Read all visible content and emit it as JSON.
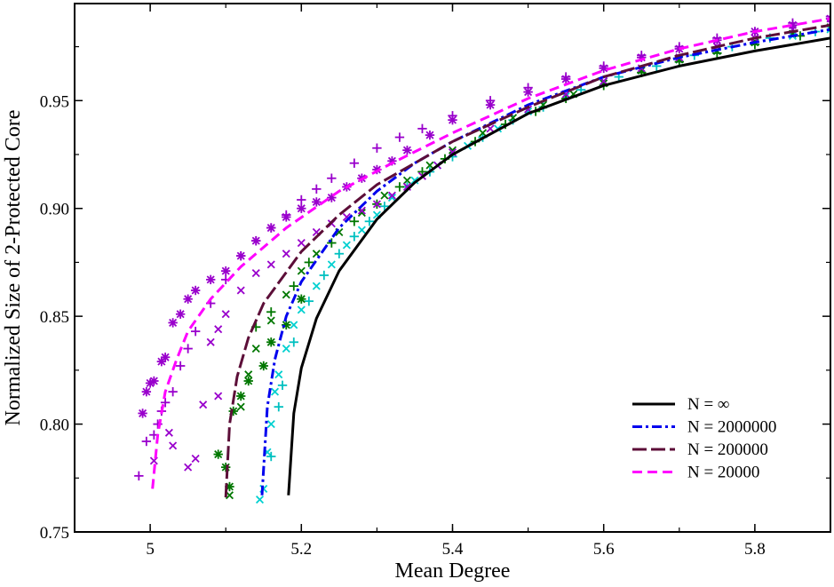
{
  "chart_data": {
    "type": "line",
    "xlabel": "Mean Degree",
    "ylabel": "Normalized Size of 2-Protected Core",
    "xlim": [
      4.9,
      5.9
    ],
    "ylim": [
      0.75,
      0.995
    ],
    "x_ticks": [
      {
        "value": 5.0,
        "label": "5"
      },
      {
        "value": 5.2,
        "label": "5.2"
      },
      {
        "value": 5.4,
        "label": "5.4"
      },
      {
        "value": 5.6,
        "label": "5.6"
      },
      {
        "value": 5.8,
        "label": "5.8"
      }
    ],
    "y_ticks": [
      {
        "value": 0.75,
        "label": "0.75"
      },
      {
        "value": 0.8,
        "label": "0.80"
      },
      {
        "value": 0.85,
        "label": "0.85"
      },
      {
        "value": 0.9,
        "label": "0.90"
      },
      {
        "value": 0.95,
        "label": "0.95"
      }
    ],
    "legend_position": "bottom-right",
    "series": [
      {
        "name": "N = ∞",
        "color": "#000000",
        "dash": "solid",
        "points": [
          [
            5.183,
            0.767
          ],
          [
            5.19,
            0.805
          ],
          [
            5.2,
            0.826
          ],
          [
            5.22,
            0.849
          ],
          [
            5.25,
            0.871
          ],
          [
            5.3,
            0.895
          ],
          [
            5.35,
            0.912
          ],
          [
            5.4,
            0.925
          ],
          [
            5.5,
            0.944
          ],
          [
            5.6,
            0.957
          ],
          [
            5.7,
            0.966
          ],
          [
            5.8,
            0.973
          ],
          [
            5.9,
            0.979
          ]
        ]
      },
      {
        "name": "N = 2000000",
        "color": "#0000ee",
        "dash": "dashdot",
        "points": [
          [
            5.148,
            0.767
          ],
          [
            5.155,
            0.808
          ],
          [
            5.165,
            0.83
          ],
          [
            5.18,
            0.85
          ],
          [
            5.2,
            0.866
          ],
          [
            5.25,
            0.891
          ],
          [
            5.3,
            0.908
          ],
          [
            5.35,
            0.921
          ],
          [
            5.4,
            0.931
          ],
          [
            5.5,
            0.948
          ],
          [
            5.6,
            0.961
          ],
          [
            5.7,
            0.97
          ],
          [
            5.8,
            0.977
          ],
          [
            5.9,
            0.983
          ]
        ]
      },
      {
        "name": "N = 200000",
        "color": "#5c0e38",
        "dash": "longdash",
        "points": [
          [
            5.1,
            0.766
          ],
          [
            5.105,
            0.8
          ],
          [
            5.115,
            0.822
          ],
          [
            5.13,
            0.84
          ],
          [
            5.15,
            0.856
          ],
          [
            5.2,
            0.88
          ],
          [
            5.25,
            0.897
          ],
          [
            5.3,
            0.911
          ],
          [
            5.4,
            0.931
          ],
          [
            5.5,
            0.947
          ],
          [
            5.6,
            0.961
          ],
          [
            5.7,
            0.971
          ],
          [
            5.8,
            0.979
          ],
          [
            5.9,
            0.985
          ]
        ]
      },
      {
        "name": "N = 20000",
        "color": "#ff00ff",
        "dash": "dash",
        "points": [
          [
            5.003,
            0.77
          ],
          [
            5.01,
            0.795
          ],
          [
            5.02,
            0.815
          ],
          [
            5.035,
            0.83
          ],
          [
            5.05,
            0.843
          ],
          [
            5.08,
            0.858
          ],
          [
            5.12,
            0.873
          ],
          [
            5.18,
            0.891
          ],
          [
            5.25,
            0.908
          ],
          [
            5.32,
            0.921
          ],
          [
            5.4,
            0.935
          ],
          [
            5.5,
            0.951
          ],
          [
            5.6,
            0.964
          ],
          [
            5.7,
            0.974
          ],
          [
            5.8,
            0.982
          ],
          [
            5.9,
            0.988
          ]
        ]
      }
    ],
    "marker_series": [
      {
        "marker": "x",
        "color": "#00d0d0",
        "points": [
          [
            5.145,
            0.765
          ],
          [
            5.15,
            0.77
          ],
          [
            5.155,
            0.787
          ],
          [
            5.16,
            0.8
          ],
          [
            5.165,
            0.815
          ],
          [
            5.17,
            0.823
          ],
          [
            5.18,
            0.835
          ],
          [
            5.19,
            0.846
          ],
          [
            5.2,
            0.853
          ],
          [
            5.22,
            0.864
          ],
          [
            5.24,
            0.874
          ],
          [
            5.26,
            0.883
          ],
          [
            5.28,
            0.89
          ],
          [
            5.3,
            0.897
          ],
          [
            5.32,
            0.905
          ],
          [
            5.35,
            0.913
          ],
          [
            5.38,
            0.92
          ],
          [
            5.42,
            0.929
          ],
          [
            5.46,
            0.937
          ],
          [
            5.5,
            0.945
          ],
          [
            5.55,
            0.952
          ],
          [
            5.6,
            0.959
          ],
          [
            5.65,
            0.964
          ],
          [
            5.7,
            0.969
          ],
          [
            5.75,
            0.973
          ],
          [
            5.8,
            0.977
          ],
          [
            5.85,
            0.98
          ],
          [
            5.9,
            0.983
          ]
        ]
      },
      {
        "marker": "+",
        "color": "#00c0c0",
        "points": [
          [
            5.16,
            0.785
          ],
          [
            5.17,
            0.808
          ],
          [
            5.175,
            0.818
          ],
          [
            5.19,
            0.838
          ],
          [
            5.21,
            0.857
          ],
          [
            5.23,
            0.869
          ],
          [
            5.25,
            0.879
          ],
          [
            5.27,
            0.887
          ],
          [
            5.29,
            0.894
          ],
          [
            5.31,
            0.901
          ],
          [
            5.34,
            0.91
          ],
          [
            5.37,
            0.917
          ],
          [
            5.4,
            0.924
          ],
          [
            5.44,
            0.933
          ],
          [
            5.48,
            0.941
          ],
          [
            5.52,
            0.947
          ],
          [
            5.57,
            0.955
          ],
          [
            5.62,
            0.961
          ],
          [
            5.67,
            0.966
          ],
          [
            5.72,
            0.971
          ],
          [
            5.77,
            0.975
          ],
          [
            5.82,
            0.979
          ],
          [
            5.88,
            0.982
          ]
        ]
      },
      {
        "marker": "*",
        "color": "#007700",
        "points": [
          [
            5.09,
            0.786
          ],
          [
            5.1,
            0.78
          ],
          [
            5.105,
            0.771
          ],
          [
            5.11,
            0.806
          ],
          [
            5.12,
            0.813
          ],
          [
            5.13,
            0.82
          ],
          [
            5.15,
            0.827
          ],
          [
            5.16,
            0.838
          ],
          [
            5.18,
            0.846
          ],
          [
            5.2,
            0.858
          ]
        ]
      },
      {
        "marker": "x",
        "color": "#007700",
        "points": [
          [
            5.105,
            0.767
          ],
          [
            5.12,
            0.808
          ],
          [
            5.13,
            0.823
          ],
          [
            5.14,
            0.835
          ],
          [
            5.16,
            0.848
          ],
          [
            5.18,
            0.86
          ],
          [
            5.2,
            0.871
          ],
          [
            5.22,
            0.879
          ],
          [
            5.25,
            0.889
          ],
          [
            5.28,
            0.898
          ],
          [
            5.31,
            0.906
          ],
          [
            5.34,
            0.913
          ],
          [
            5.37,
            0.92
          ],
          [
            5.4,
            0.927
          ],
          [
            5.44,
            0.935
          ],
          [
            5.48,
            0.942
          ],
          [
            5.52,
            0.948
          ],
          [
            5.56,
            0.953
          ],
          [
            5.6,
            0.958
          ],
          [
            5.65,
            0.964
          ],
          [
            5.7,
            0.969
          ],
          [
            5.75,
            0.973
          ],
          [
            5.8,
            0.977
          ],
          [
            5.85,
            0.981
          ],
          [
            5.9,
            0.984
          ]
        ]
      },
      {
        "marker": "+",
        "color": "#007700",
        "points": [
          [
            5.14,
            0.845
          ],
          [
            5.16,
            0.852
          ],
          [
            5.19,
            0.864
          ],
          [
            5.21,
            0.875
          ],
          [
            5.24,
            0.884
          ],
          [
            5.27,
            0.894
          ],
          [
            5.3,
            0.902
          ],
          [
            5.33,
            0.91
          ],
          [
            5.36,
            0.917
          ],
          [
            5.39,
            0.923
          ],
          [
            5.43,
            0.931
          ],
          [
            5.47,
            0.939
          ],
          [
            5.51,
            0.945
          ],
          [
            5.55,
            0.951
          ],
          [
            5.6,
            0.957
          ],
          [
            5.65,
            0.963
          ],
          [
            5.7,
            0.968
          ],
          [
            5.75,
            0.972
          ],
          [
            5.8,
            0.976
          ],
          [
            5.86,
            0.98
          ]
        ]
      },
      {
        "marker": "*",
        "color": "#9900cc",
        "points": [
          [
            4.99,
            0.805
          ],
          [
            4.995,
            0.815
          ],
          [
            5.0,
            0.819
          ],
          [
            5.005,
            0.82
          ],
          [
            5.015,
            0.829
          ],
          [
            5.02,
            0.831
          ],
          [
            5.03,
            0.847
          ],
          [
            5.04,
            0.851
          ],
          [
            5.05,
            0.858
          ],
          [
            5.06,
            0.862
          ],
          [
            5.08,
            0.867
          ],
          [
            5.1,
            0.871
          ],
          [
            5.12,
            0.878
          ],
          [
            5.14,
            0.885
          ],
          [
            5.16,
            0.891
          ],
          [
            5.18,
            0.896
          ],
          [
            5.2,
            0.9
          ],
          [
            5.22,
            0.903
          ],
          [
            5.24,
            0.905
          ],
          [
            5.26,
            0.91
          ],
          [
            5.28,
            0.914
          ],
          [
            5.3,
            0.918
          ],
          [
            5.32,
            0.922
          ],
          [
            5.34,
            0.927
          ],
          [
            5.37,
            0.934
          ],
          [
            5.4,
            0.941
          ],
          [
            5.45,
            0.948
          ],
          [
            5.5,
            0.954
          ],
          [
            5.55,
            0.96
          ],
          [
            5.6,
            0.965
          ],
          [
            5.65,
            0.97
          ],
          [
            5.7,
            0.974
          ],
          [
            5.75,
            0.978
          ],
          [
            5.8,
            0.982
          ],
          [
            5.85,
            0.985
          ],
          [
            5.9,
            0.988
          ]
        ]
      },
      {
        "marker": "+",
        "color": "#9900cc",
        "points": [
          [
            4.985,
            0.776
          ],
          [
            4.995,
            0.792
          ],
          [
            5.005,
            0.795
          ],
          [
            5.01,
            0.8
          ],
          [
            5.015,
            0.806
          ],
          [
            5.02,
            0.81
          ],
          [
            5.03,
            0.815
          ],
          [
            5.04,
            0.827
          ],
          [
            5.05,
            0.835
          ],
          [
            5.06,
            0.843
          ],
          [
            5.08,
            0.856
          ],
          [
            5.1,
            0.867
          ],
          [
            5.12,
            0.878
          ],
          [
            5.14,
            0.885
          ],
          [
            5.16,
            0.891
          ],
          [
            5.18,
            0.897
          ],
          [
            5.2,
            0.904
          ],
          [
            5.22,
            0.909
          ],
          [
            5.24,
            0.914
          ],
          [
            5.27,
            0.921
          ],
          [
            5.3,
            0.928
          ],
          [
            5.33,
            0.933
          ],
          [
            5.36,
            0.937
          ],
          [
            5.4,
            0.943
          ],
          [
            5.45,
            0.95
          ],
          [
            5.5,
            0.956
          ],
          [
            5.55,
            0.961
          ],
          [
            5.6,
            0.966
          ],
          [
            5.65,
            0.971
          ],
          [
            5.7,
            0.975
          ],
          [
            5.75,
            0.979
          ],
          [
            5.8,
            0.982
          ],
          [
            5.85,
            0.986
          ],
          [
            5.9,
            0.989
          ]
        ]
      },
      {
        "marker": "x",
        "color": "#9900cc",
        "points": [
          [
            5.005,
            0.783
          ],
          [
            5.025,
            0.796
          ],
          [
            5.03,
            0.79
          ],
          [
            5.05,
            0.78
          ],
          [
            5.06,
            0.784
          ],
          [
            5.07,
            0.809
          ],
          [
            5.09,
            0.813
          ],
          [
            5.08,
            0.838
          ],
          [
            5.09,
            0.844
          ],
          [
            5.1,
            0.851
          ],
          [
            5.12,
            0.862
          ],
          [
            5.14,
            0.87
          ],
          [
            5.16,
            0.874
          ],
          [
            5.18,
            0.879
          ],
          [
            5.2,
            0.884
          ],
          [
            5.22,
            0.889
          ],
          [
            5.24,
            0.893
          ],
          [
            5.26,
            0.896
          ],
          [
            5.28,
            0.899
          ],
          [
            5.3,
            0.902
          ],
          [
            5.32,
            0.906
          ],
          [
            5.34,
            0.91
          ],
          [
            5.36,
            0.915
          ],
          [
            5.38,
            0.92
          ],
          [
            5.4,
            0.926
          ],
          [
            5.45,
            0.937
          ],
          [
            5.5,
            0.946
          ],
          [
            5.55,
            0.953
          ],
          [
            5.6,
            0.959
          ],
          [
            5.65,
            0.965
          ],
          [
            5.7,
            0.97
          ],
          [
            5.75,
            0.975
          ],
          [
            5.8,
            0.979
          ],
          [
            5.85,
            0.983
          ],
          [
            5.9,
            0.986
          ]
        ]
      }
    ]
  }
}
